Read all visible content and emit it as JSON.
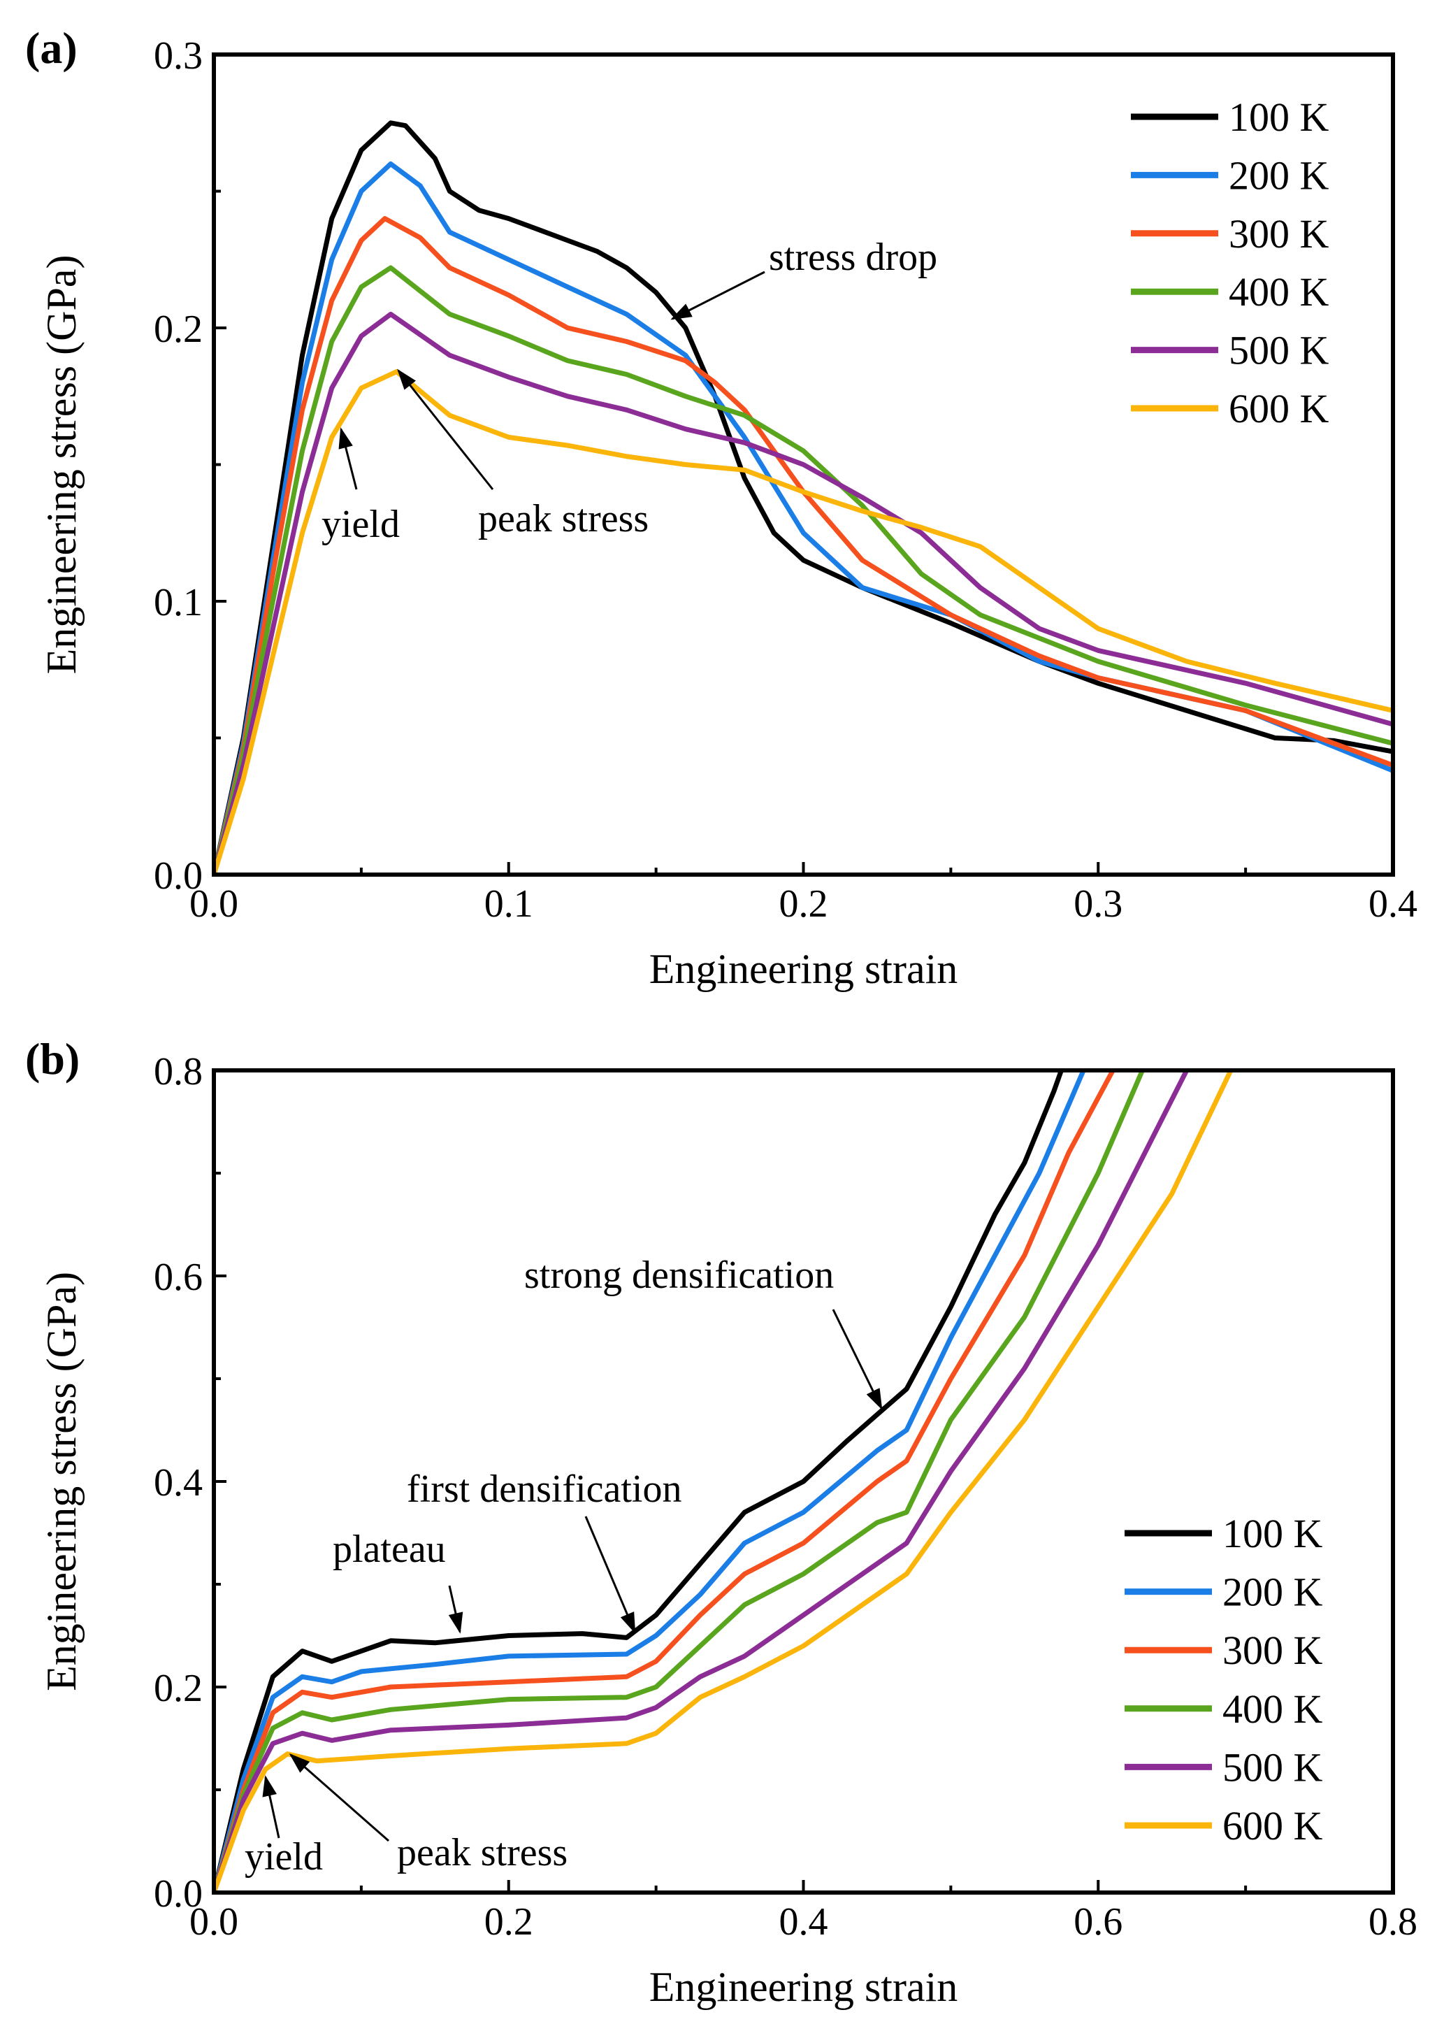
{
  "chart_data": [
    {
      "panel_label": "(a)",
      "type": "line",
      "xlabel": "Engineering strain",
      "ylabel": "Engineering stress (GPa)",
      "xlim": [
        0,
        0.4
      ],
      "ylim": [
        0,
        0.3
      ],
      "xticks": [
        "0.0",
        "0.1",
        "0.2",
        "0.3",
        "0.4"
      ],
      "yticks": [
        "0.0",
        "0.1",
        "0.2",
        "0.3"
      ],
      "grid": false,
      "legend_position": "top-right",
      "annotations": [
        "stress drop",
        "yield",
        "peak stress"
      ],
      "series": [
        {
          "name": "100 K",
          "color": "#000000",
          "x": [
            0,
            0.01,
            0.02,
            0.03,
            0.04,
            0.05,
            0.06,
            0.065,
            0.07,
            0.075,
            0.08,
            0.09,
            0.1,
            0.11,
            0.12,
            0.13,
            0.14,
            0.15,
            0.16,
            0.17,
            0.18,
            0.19,
            0.2,
            0.22,
            0.25,
            0.28,
            0.3,
            0.33,
            0.36,
            0.38,
            0.4
          ],
          "y": [
            0,
            0.05,
            0.12,
            0.19,
            0.24,
            0.265,
            0.275,
            0.274,
            0.268,
            0.262,
            0.25,
            0.243,
            0.24,
            0.236,
            0.232,
            0.228,
            0.222,
            0.213,
            0.2,
            0.175,
            0.145,
            0.125,
            0.115,
            0.105,
            0.092,
            0.078,
            0.07,
            0.06,
            0.05,
            0.049,
            0.045
          ]
        },
        {
          "name": "200 K",
          "color": "#1a7ee6",
          "x": [
            0,
            0.01,
            0.02,
            0.03,
            0.04,
            0.05,
            0.06,
            0.07,
            0.08,
            0.1,
            0.12,
            0.14,
            0.16,
            0.18,
            0.2,
            0.22,
            0.25,
            0.28,
            0.3,
            0.35,
            0.4
          ],
          "y": [
            0,
            0.048,
            0.115,
            0.18,
            0.225,
            0.25,
            0.26,
            0.252,
            0.235,
            0.225,
            0.215,
            0.205,
            0.19,
            0.16,
            0.125,
            0.105,
            0.095,
            0.078,
            0.072,
            0.06,
            0.038
          ]
        },
        {
          "name": "300 K",
          "color": "#f5501e",
          "x": [
            0,
            0.01,
            0.02,
            0.03,
            0.04,
            0.05,
            0.058,
            0.07,
            0.08,
            0.1,
            0.12,
            0.14,
            0.16,
            0.17,
            0.18,
            0.2,
            0.22,
            0.25,
            0.28,
            0.3,
            0.35,
            0.4
          ],
          "y": [
            0,
            0.046,
            0.11,
            0.17,
            0.21,
            0.232,
            0.24,
            0.233,
            0.222,
            0.212,
            0.2,
            0.195,
            0.188,
            0.18,
            0.17,
            0.14,
            0.115,
            0.095,
            0.08,
            0.072,
            0.06,
            0.04
          ]
        },
        {
          "name": "400 K",
          "color": "#5aa51e",
          "x": [
            0,
            0.01,
            0.02,
            0.03,
            0.04,
            0.05,
            0.06,
            0.08,
            0.1,
            0.12,
            0.14,
            0.16,
            0.18,
            0.2,
            0.22,
            0.24,
            0.26,
            0.3,
            0.35,
            0.4
          ],
          "y": [
            0,
            0.044,
            0.1,
            0.155,
            0.195,
            0.215,
            0.222,
            0.205,
            0.197,
            0.188,
            0.183,
            0.175,
            0.168,
            0.155,
            0.135,
            0.11,
            0.095,
            0.078,
            0.062,
            0.048
          ]
        },
        {
          "name": "500 K",
          "color": "#8c2d96",
          "x": [
            0,
            0.01,
            0.02,
            0.03,
            0.04,
            0.05,
            0.06,
            0.08,
            0.1,
            0.12,
            0.14,
            0.16,
            0.18,
            0.2,
            0.22,
            0.24,
            0.26,
            0.28,
            0.3,
            0.35,
            0.4
          ],
          "y": [
            0,
            0.04,
            0.09,
            0.14,
            0.178,
            0.197,
            0.205,
            0.19,
            0.182,
            0.175,
            0.17,
            0.163,
            0.158,
            0.15,
            0.138,
            0.125,
            0.105,
            0.09,
            0.082,
            0.07,
            0.055
          ]
        },
        {
          "name": "600 K",
          "color": "#fab40a",
          "x": [
            0,
            0.01,
            0.02,
            0.03,
            0.04,
            0.05,
            0.062,
            0.08,
            0.1,
            0.12,
            0.14,
            0.16,
            0.18,
            0.2,
            0.22,
            0.24,
            0.26,
            0.28,
            0.3,
            0.33,
            0.36,
            0.4
          ],
          "y": [
            0,
            0.035,
            0.08,
            0.125,
            0.16,
            0.178,
            0.184,
            0.168,
            0.16,
            0.157,
            0.153,
            0.15,
            0.148,
            0.14,
            0.133,
            0.127,
            0.12,
            0.105,
            0.09,
            0.078,
            0.07,
            0.06
          ]
        }
      ]
    },
    {
      "panel_label": "(b)",
      "type": "line",
      "xlabel": "Engineering strain",
      "ylabel": "Engineering stress (GPa)",
      "xlim": [
        0,
        0.8
      ],
      "ylim": [
        0,
        0.8
      ],
      "xticks": [
        "0.0",
        "0.2",
        "0.4",
        "0.6",
        "0.8"
      ],
      "yticks": [
        "0.0",
        "0.2",
        "0.4",
        "0.6",
        "0.8"
      ],
      "grid": false,
      "legend_position": "bottom-right",
      "annotations": [
        "strong densification",
        "first densification",
        "plateau",
        "yield",
        "peak stress"
      ],
      "series": [
        {
          "name": "100 K",
          "color": "#000000",
          "x": [
            0,
            0.02,
            0.04,
            0.06,
            0.08,
            0.1,
            0.12,
            0.15,
            0.2,
            0.25,
            0.28,
            0.3,
            0.33,
            0.36,
            0.4,
            0.43,
            0.45,
            0.47,
            0.5,
            0.53,
            0.55,
            0.57,
            0.575
          ],
          "y": [
            0,
            0.12,
            0.21,
            0.235,
            0.225,
            0.235,
            0.245,
            0.243,
            0.25,
            0.252,
            0.248,
            0.27,
            0.32,
            0.37,
            0.4,
            0.44,
            0.465,
            0.49,
            0.57,
            0.66,
            0.71,
            0.78,
            0.8
          ]
        },
        {
          "name": "200 K",
          "color": "#1a7ee6",
          "x": [
            0,
            0.02,
            0.04,
            0.06,
            0.08,
            0.1,
            0.15,
            0.2,
            0.28,
            0.3,
            0.33,
            0.36,
            0.4,
            0.45,
            0.47,
            0.5,
            0.53,
            0.56,
            0.59
          ],
          "y": [
            0,
            0.11,
            0.19,
            0.21,
            0.205,
            0.215,
            0.222,
            0.23,
            0.232,
            0.25,
            0.29,
            0.34,
            0.37,
            0.43,
            0.45,
            0.54,
            0.62,
            0.7,
            0.8
          ]
        },
        {
          "name": "300 K",
          "color": "#f5501e",
          "x": [
            0,
            0.02,
            0.04,
            0.06,
            0.08,
            0.12,
            0.2,
            0.28,
            0.3,
            0.33,
            0.36,
            0.4,
            0.45,
            0.47,
            0.5,
            0.55,
            0.58,
            0.61
          ],
          "y": [
            0,
            0.1,
            0.175,
            0.195,
            0.19,
            0.2,
            0.205,
            0.21,
            0.225,
            0.27,
            0.31,
            0.34,
            0.4,
            0.42,
            0.5,
            0.62,
            0.72,
            0.8
          ]
        },
        {
          "name": "400 K",
          "color": "#5aa51e",
          "x": [
            0,
            0.02,
            0.04,
            0.06,
            0.08,
            0.12,
            0.2,
            0.28,
            0.3,
            0.33,
            0.36,
            0.4,
            0.45,
            0.47,
            0.5,
            0.55,
            0.6,
            0.63
          ],
          "y": [
            0,
            0.095,
            0.16,
            0.175,
            0.168,
            0.178,
            0.188,
            0.19,
            0.2,
            0.24,
            0.28,
            0.31,
            0.36,
            0.37,
            0.46,
            0.56,
            0.7,
            0.8
          ]
        },
        {
          "name": "500 K",
          "color": "#8c2d96",
          "x": [
            0,
            0.02,
            0.04,
            0.06,
            0.08,
            0.12,
            0.2,
            0.28,
            0.3,
            0.33,
            0.36,
            0.4,
            0.45,
            0.47,
            0.5,
            0.55,
            0.6,
            0.66
          ],
          "y": [
            0,
            0.09,
            0.145,
            0.155,
            0.148,
            0.158,
            0.163,
            0.17,
            0.18,
            0.21,
            0.23,
            0.27,
            0.32,
            0.34,
            0.41,
            0.51,
            0.63,
            0.8
          ]
        },
        {
          "name": "600 K",
          "color": "#fab40a",
          "x": [
            0,
            0.02,
            0.035,
            0.05,
            0.07,
            0.12,
            0.2,
            0.28,
            0.3,
            0.33,
            0.36,
            0.4,
            0.45,
            0.47,
            0.5,
            0.55,
            0.6,
            0.65,
            0.69
          ],
          "y": [
            0,
            0.08,
            0.12,
            0.135,
            0.128,
            0.133,
            0.14,
            0.145,
            0.155,
            0.19,
            0.21,
            0.24,
            0.29,
            0.31,
            0.37,
            0.46,
            0.57,
            0.68,
            0.8
          ]
        }
      ]
    }
  ]
}
